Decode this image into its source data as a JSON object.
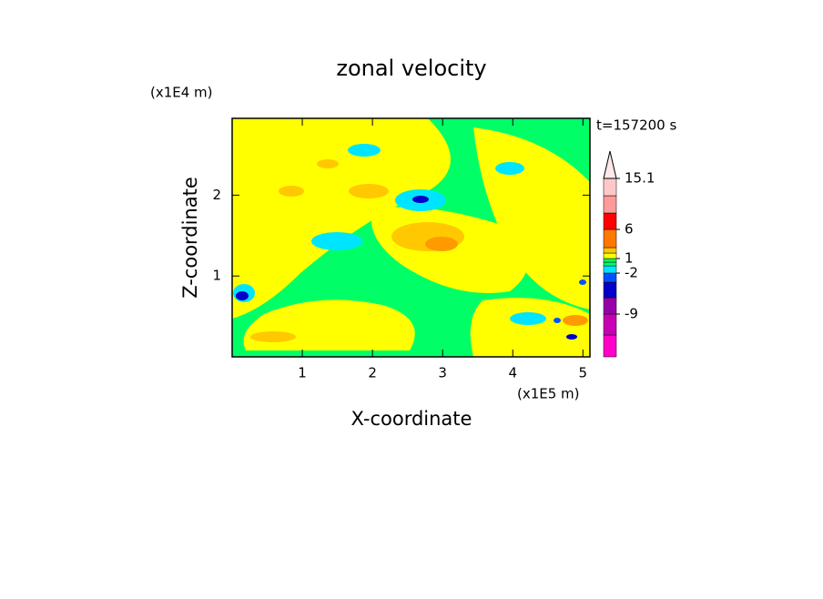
{
  "chart_data": {
    "type": "contour",
    "title": "zonal velocity",
    "x_label": "X-coordinate",
    "y_label": "Z-coordinate",
    "x_unit": "(x1E5 m)",
    "y_unit": "(x1E4 m)",
    "time_label": "t=157200 s",
    "xlim": [
      0,
      5.1
    ],
    "ylim": [
      0,
      2.95
    ],
    "xticks": [
      1,
      2,
      3,
      4,
      5
    ],
    "yticks": [
      1,
      2
    ],
    "colorbar": {
      "levels": [
        -15,
        -12,
        -9,
        -6,
        -3,
        -2,
        -1,
        0,
        1,
        2,
        3,
        6,
        9,
        12,
        15.1
      ],
      "colors": [
        "#ff00c8",
        "#c800b4",
        "#9600aa",
        "#0000c8",
        "#0050ff",
        "#00e5ff",
        "#00ff66",
        "#00ff66",
        "#ffff00",
        "#ffc800",
        "#ff7800",
        "#ff0000",
        "#ff9a9a",
        "#ffc8c8"
      ],
      "ticks": [
        -9,
        -2,
        1,
        6,
        15.1
      ]
    }
  }
}
